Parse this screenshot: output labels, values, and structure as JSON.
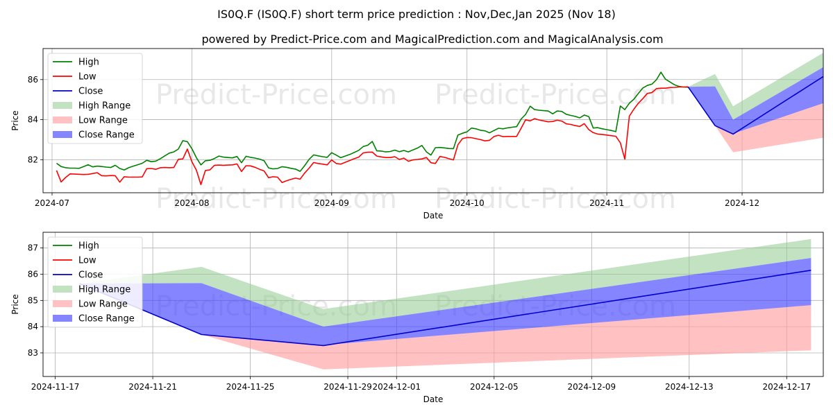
{
  "title": "IS0Q.F (IS0Q.F) short term price prediction : Nov,Dec,Jan 2025 (Nov 18)",
  "subtitle": "powered by Predict-Price.com and MagicalPrediction.com and MagicalAnalysis.com",
  "watermark": "Predict-Price.com",
  "colors": {
    "high": "#008000",
    "low": "#ff0000",
    "close": "#0000cc",
    "high_range": "#8fca8f",
    "low_range": "#ff9f9f",
    "close_range": "#4444ff",
    "grid": "#b0b0b0"
  },
  "chart_data": [
    {
      "type": "line",
      "name": "top-chart",
      "xlabel": "Date",
      "ylabel": "Price",
      "xlim": [
        -2,
        171
      ],
      "ylim": [
        80.35,
        87.55
      ],
      "grid": true,
      "legend_position": "top-left",
      "x_ticks": [
        {
          "day": 0,
          "label": "2024-07"
        },
        {
          "day": 31,
          "label": "2024-08"
        },
        {
          "day": 62,
          "label": "2024-09"
        },
        {
          "day": 92,
          "label": "2024-10"
        },
        {
          "day": 123,
          "label": "2024-11"
        },
        {
          "day": 153,
          "label": "2024-12"
        }
      ],
      "y_ticks": [
        82,
        84,
        86
      ],
      "legend": [
        "High",
        "Low",
        "Close",
        "High Range",
        "Low Range",
        "Close Range"
      ],
      "series": [
        {
          "name": "High",
          "x": [
            1,
            2,
            3,
            4,
            5,
            6,
            7,
            8,
            9,
            10,
            11,
            12,
            13,
            14,
            15,
            16,
            17,
            18,
            19,
            20,
            21,
            22,
            23,
            24,
            25,
            26,
            27,
            28,
            29,
            30,
            31,
            32,
            33,
            34,
            35,
            36,
            37,
            38,
            39,
            40,
            41,
            42,
            43,
            44,
            45,
            46,
            47,
            48,
            49,
            50,
            51,
            52,
            53,
            54,
            55,
            56,
            57,
            58,
            59,
            60,
            61,
            62,
            63,
            64,
            65,
            66,
            67,
            68,
            69,
            70,
            71,
            72,
            73,
            74,
            75,
            76,
            77,
            78,
            79,
            80,
            81,
            82,
            83,
            84,
            85,
            86,
            87,
            88,
            89,
            90,
            91,
            92,
            93,
            94,
            95,
            96,
            97,
            98,
            99,
            100,
            101,
            102,
            103,
            104,
            105,
            106,
            107,
            108,
            109,
            110,
            111,
            112,
            113,
            114,
            115,
            116,
            117,
            118,
            119,
            120,
            121,
            122,
            123,
            124,
            125,
            126,
            127,
            128,
            129,
            130,
            131,
            132,
            133,
            134,
            135,
            136,
            137,
            138,
            139,
            140,
            141
          ],
          "values": [
            81.82,
            81.66,
            81.6,
            81.58,
            81.58,
            81.57,
            81.66,
            81.75,
            81.64,
            81.68,
            81.66,
            81.63,
            81.61,
            81.72,
            81.56,
            81.49,
            81.6,
            81.68,
            81.75,
            81.82,
            81.97,
            81.9,
            81.93,
            82.05,
            82.19,
            82.33,
            82.39,
            82.53,
            82.95,
            82.9,
            82.55,
            82.1,
            81.74,
            81.95,
            81.97,
            82.06,
            82.18,
            82.13,
            82.11,
            82.09,
            82.16,
            81.85,
            82.17,
            82.12,
            82.08,
            82.03,
            81.95,
            81.59,
            81.54,
            81.56,
            81.65,
            81.62,
            81.57,
            81.53,
            81.42,
            81.7,
            82.02,
            82.24,
            82.19,
            82.15,
            82.12,
            82.35,
            82.23,
            82.1,
            82.18,
            82.26,
            82.36,
            82.47,
            82.66,
            82.72,
            82.91,
            82.44,
            82.43,
            82.39,
            82.41,
            82.48,
            82.4,
            82.46,
            82.39,
            82.49,
            82.58,
            82.71,
            82.39,
            82.23,
            82.6,
            82.61,
            82.59,
            82.56,
            82.55,
            83.23,
            83.32,
            83.39,
            83.58,
            83.54,
            83.47,
            83.44,
            83.34,
            83.46,
            83.57,
            83.54,
            83.59,
            83.62,
            83.65,
            84.03,
            84.26,
            84.67,
            84.5,
            84.47,
            84.45,
            84.43,
            84.29,
            84.43,
            84.41,
            84.27,
            84.21,
            84.16,
            84.09,
            84.23,
            84.15,
            83.58,
            83.6,
            83.54,
            83.5,
            83.46,
            83.4,
            84.68,
            84.5,
            84.82,
            85.02,
            85.31,
            85.58,
            85.71,
            85.77,
            85.99,
            86.37,
            86.02,
            85.88,
            85.74,
            85.66,
            85.63,
            85.62
          ]
        },
        {
          "name": "Low",
          "x": [
            1,
            2,
            3,
            4,
            5,
            6,
            7,
            8,
            9,
            10,
            11,
            12,
            13,
            14,
            15,
            16,
            17,
            18,
            19,
            20,
            21,
            22,
            23,
            24,
            25,
            26,
            27,
            28,
            29,
            30,
            31,
            32,
            33,
            34,
            35,
            36,
            37,
            38,
            39,
            40,
            41,
            42,
            43,
            44,
            45,
            46,
            47,
            48,
            49,
            50,
            51,
            52,
            53,
            54,
            55,
            56,
            57,
            58,
            59,
            60,
            61,
            62,
            63,
            64,
            65,
            66,
            67,
            68,
            69,
            70,
            71,
            72,
            73,
            74,
            75,
            76,
            77,
            78,
            79,
            80,
            81,
            82,
            83,
            84,
            85,
            86,
            87,
            88,
            89,
            90,
            91,
            92,
            93,
            94,
            95,
            96,
            97,
            98,
            99,
            100,
            101,
            102,
            103,
            104,
            105,
            106,
            107,
            108,
            109,
            110,
            111,
            112,
            113,
            114,
            115,
            116,
            117,
            118,
            119,
            120,
            121,
            122,
            123,
            124,
            125,
            126,
            127,
            128,
            129,
            130,
            131,
            132,
            133,
            134,
            135,
            136,
            137,
            138,
            139,
            140,
            141
          ],
          "values": [
            81.46,
            80.89,
            81.11,
            81.29,
            81.28,
            81.27,
            81.26,
            81.27,
            81.31,
            81.35,
            81.2,
            81.19,
            81.21,
            81.2,
            80.88,
            81.15,
            81.13,
            81.13,
            81.13,
            81.14,
            81.55,
            81.56,
            81.52,
            81.6,
            81.61,
            81.6,
            81.61,
            82.02,
            82.04,
            82.53,
            81.9,
            81.48,
            80.76,
            81.46,
            81.49,
            81.72,
            81.73,
            81.72,
            81.73,
            81.74,
            81.79,
            81.41,
            81.7,
            81.69,
            81.62,
            81.52,
            81.44,
            81.1,
            81.15,
            81.13,
            80.86,
            80.95,
            81.02,
            81.08,
            81.03,
            81.33,
            81.58,
            81.86,
            81.81,
            81.78,
            81.74,
            81.99,
            81.81,
            81.78,
            81.87,
            81.96,
            82.05,
            82.13,
            82.34,
            82.37,
            82.38,
            82.18,
            82.14,
            82.11,
            82.11,
            82.15,
            82.01,
            82.08,
            81.92,
            81.99,
            82.01,
            82.04,
            82.11,
            81.85,
            81.81,
            82.16,
            82.12,
            82.05,
            81.99,
            82.75,
            83.05,
            83.11,
            83.1,
            83.05,
            83.0,
            82.94,
            82.97,
            83.16,
            83.22,
            83.15,
            83.16,
            83.16,
            83.16,
            83.57,
            83.99,
            83.94,
            84.05,
            83.98,
            83.94,
            83.89,
            83.91,
            83.97,
            83.93,
            83.79,
            83.76,
            83.7,
            83.66,
            83.8,
            83.5,
            83.35,
            83.28,
            83.26,
            83.23,
            83.2,
            83.17,
            82.85,
            82.03,
            84.17,
            84.52,
            84.82,
            85.05,
            85.31,
            85.35,
            85.55,
            85.57,
            85.57,
            85.6,
            85.61,
            85.63,
            85.63,
            85.64
          ]
        },
        {
          "name": "Close",
          "x": [
            141,
            147,
            151,
            171
          ],
          "values": [
            85.64,
            83.7,
            83.28,
            86.15
          ]
        },
        {
          "name": "High Range",
          "x": [
            141,
            147,
            151,
            171
          ],
          "upper": [
            85.64,
            86.28,
            84.67,
            87.34
          ],
          "lower": [
            85.64,
            85.66,
            84.0,
            86.62
          ]
        },
        {
          "name": "Low Range",
          "x": [
            141,
            147,
            151,
            171
          ],
          "upper": [
            85.64,
            83.73,
            83.3,
            84.82
          ],
          "lower": [
            85.64,
            83.7,
            82.37,
            83.1
          ]
        },
        {
          "name": "Close Range",
          "x": [
            141,
            147,
            151,
            171
          ],
          "upper": [
            85.64,
            85.66,
            84.0,
            86.62
          ],
          "lower": [
            85.64,
            83.7,
            83.3,
            84.82
          ]
        }
      ]
    },
    {
      "type": "line",
      "name": "bottom-chart",
      "xlabel": "Date",
      "ylabel": "Price",
      "xlim": [
        -0.5,
        31.5
      ],
      "ylim": [
        82.1,
        87.6
      ],
      "grid": true,
      "legend_position": "top-left",
      "x_ticks": [
        {
          "day": 0,
          "label": "2024-11-17"
        },
        {
          "day": 4,
          "label": "2024-11-21"
        },
        {
          "day": 8,
          "label": "2024-11-25"
        },
        {
          "day": 12,
          "label": "2024-11-29"
        },
        {
          "day": 14,
          "label": "2024-12-01"
        },
        {
          "day": 18,
          "label": "2024-12-05"
        },
        {
          "day": 22,
          "label": "2024-12-09"
        },
        {
          "day": 26,
          "label": "2024-12-13"
        },
        {
          "day": 30,
          "label": "2024-12-17"
        }
      ],
      "y_ticks": [
        83,
        84,
        85,
        86,
        87
      ],
      "legend": [
        "High",
        "Low",
        "Close",
        "High Range",
        "Low Range",
        "Close Range"
      ],
      "series": [
        {
          "name": "High",
          "x": [],
          "values": []
        },
        {
          "name": "Low",
          "x": [],
          "values": []
        },
        {
          "name": "Close",
          "x": [
            1,
            6,
            11,
            31
          ],
          "values": [
            85.64,
            83.7,
            83.28,
            86.15
          ]
        },
        {
          "name": "High Range",
          "x": [
            1,
            6,
            11,
            31
          ],
          "upper": [
            85.64,
            86.28,
            84.67,
            87.34
          ],
          "lower": [
            85.64,
            85.66,
            84.0,
            86.62
          ]
        },
        {
          "name": "Low Range",
          "x": [
            1,
            6,
            11,
            31
          ],
          "upper": [
            85.64,
            83.73,
            83.3,
            84.82
          ],
          "lower": [
            85.64,
            83.7,
            82.37,
            83.1
          ]
        },
        {
          "name": "Close Range",
          "x": [
            1,
            6,
            11,
            31
          ],
          "upper": [
            85.64,
            85.66,
            84.0,
            86.62
          ],
          "lower": [
            85.64,
            83.7,
            83.3,
            84.82
          ]
        }
      ]
    }
  ]
}
